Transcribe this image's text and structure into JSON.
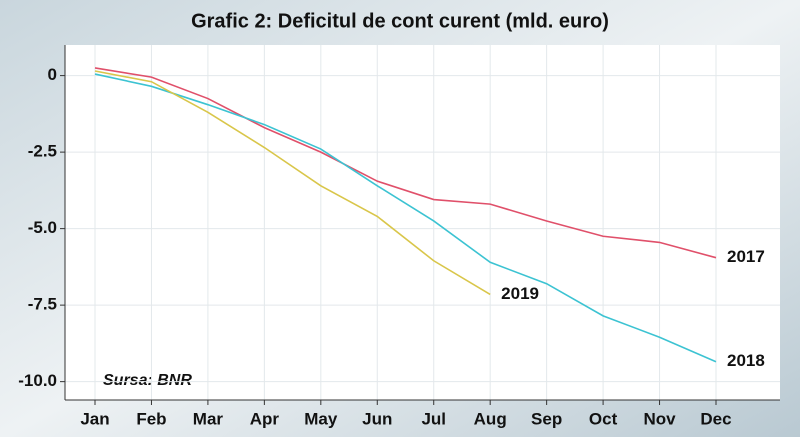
{
  "chart_data": {
    "type": "line",
    "title": "Grafic 2: Deficitul de cont curent (mld. euro)",
    "annotation": "Sursa: BNR",
    "categories": [
      "Jan",
      "Feb",
      "Mar",
      "Apr",
      "May",
      "Jun",
      "Jul",
      "Aug",
      "Sep",
      "Oct",
      "Nov",
      "Dec"
    ],
    "series": [
      {
        "name": "2017",
        "color": "#e0506a",
        "label_color": "#d7263d",
        "values": [
          0.25,
          -0.05,
          -0.75,
          -1.7,
          -2.5,
          -3.45,
          -4.05,
          -4.2,
          -4.75,
          -5.25,
          -5.45,
          -5.95
        ]
      },
      {
        "name": "2018",
        "color": "#3cc3d2",
        "label_color": "#2b8fc9",
        "values": [
          0.05,
          -0.35,
          -0.95,
          -1.6,
          -2.4,
          -3.6,
          -4.75,
          -6.1,
          -6.8,
          -7.85,
          -8.55,
          -9.35
        ]
      },
      {
        "name": "2019",
        "color": "#d9c64a",
        "label_color": "#d4a82a",
        "values": [
          0.15,
          -0.2,
          -1.2,
          -2.35,
          -3.6,
          -4.6,
          -6.05,
          -7.15,
          null,
          null,
          null,
          null
        ]
      }
    ],
    "ylim": [
      -10.6,
      1
    ],
    "yticks": [
      0,
      -2.5,
      {
        "value": -5,
        "label": "-5.0"
      },
      -7.5,
      {
        "value": -10,
        "label": "-10.0"
      }
    ],
    "grid": true
  }
}
